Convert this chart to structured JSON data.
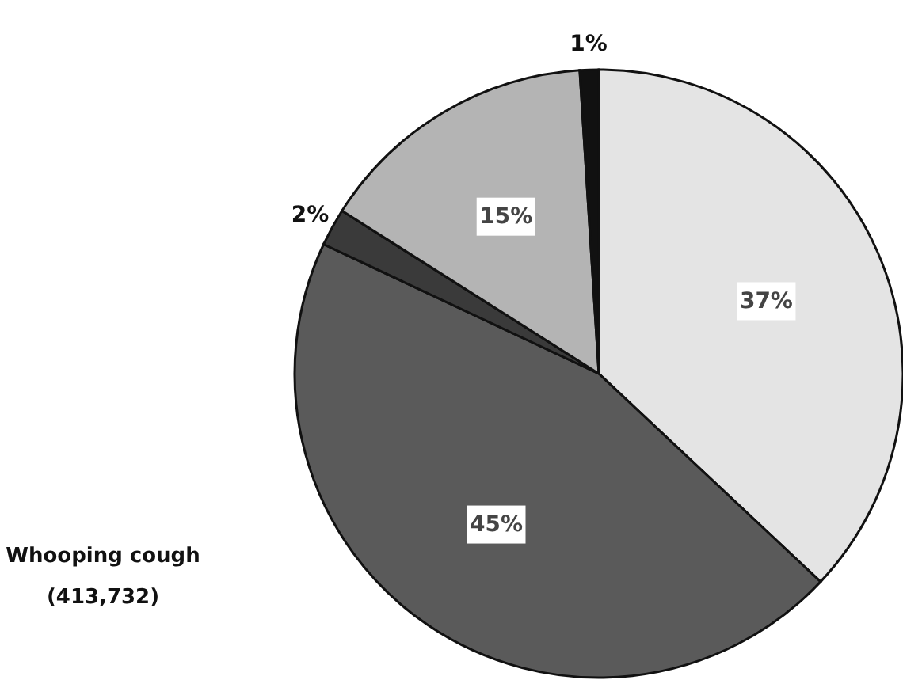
{
  "chart_data": {
    "type": "pie",
    "title": "Whooping cough",
    "subtitle": "(413,732)",
    "categories": [
      null,
      null,
      null,
      null,
      null
    ],
    "values": [
      37,
      45,
      2,
      15,
      1
    ],
    "colors": [
      "#e4e4e4",
      "#5a5a5a",
      "#3a3a3a",
      "#b4b4b4",
      "#111111"
    ],
    "value_labels": [
      "37%",
      "45%",
      "2%",
      "15%",
      "1%"
    ]
  }
}
